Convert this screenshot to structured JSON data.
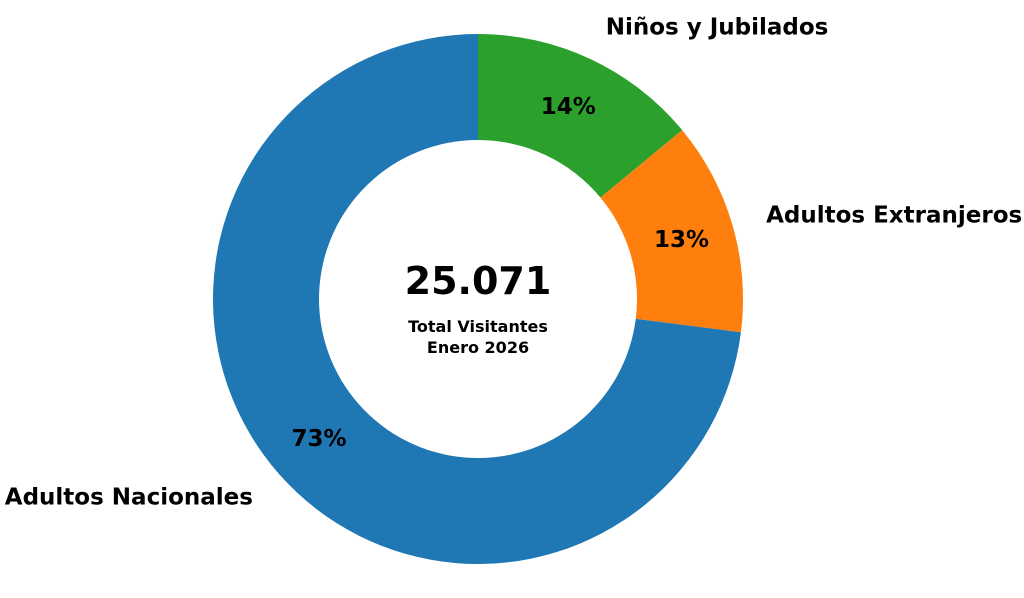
{
  "chart_data": {
    "type": "pie",
    "variant": "donut",
    "title": "",
    "start_angle_deg": 90,
    "direction": "clockwise",
    "slices": [
      {
        "label": "Niños y Jubilados",
        "percent": 14,
        "value_label": "14%",
        "color": "#2ca02c"
      },
      {
        "label": "Adultos Extranjeros",
        "percent": 13,
        "value_label": "13%",
        "color": "#ff7f0e"
      },
      {
        "label": "Adultos Nacionales",
        "percent": 73,
        "value_label": "73%",
        "color": "#1f77b4"
      }
    ],
    "center": {
      "value": "25.071",
      "caption_line1": "Total Visitantes",
      "caption_line2": "Enero 2026"
    }
  }
}
